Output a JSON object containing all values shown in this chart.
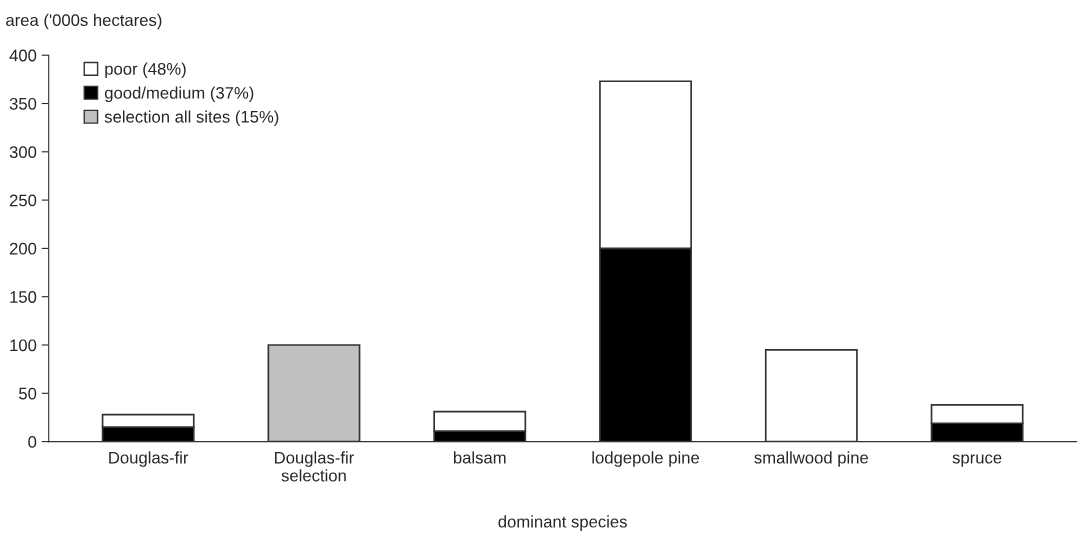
{
  "chart_data": {
    "type": "bar",
    "stacked": true,
    "ylabel": "area ('000s hectares)",
    "xlabel": "dominant species",
    "categories": [
      "Douglas-fir",
      "Douglas-fir\nselection",
      "balsam",
      "lodgepole pine",
      "smallwood pine",
      "spruce"
    ],
    "series": [
      {
        "name": "selection all sites (15%)",
        "color": "#c0c0c0",
        "values": [
          null,
          100,
          null,
          null,
          null,
          null
        ]
      },
      {
        "name": "good/medium (37%)",
        "color": "#000000",
        "values": [
          15,
          null,
          11,
          200,
          null,
          19
        ]
      },
      {
        "name": "poor (48%)",
        "color": "#ffffff",
        "values": [
          13,
          null,
          20,
          173,
          95,
          19
        ]
      }
    ],
    "ylim": [
      0,
      400
    ],
    "yticks": [
      0,
      50,
      100,
      150,
      200,
      250,
      300,
      350,
      400
    ],
    "grid": false,
    "legend": "top left"
  }
}
